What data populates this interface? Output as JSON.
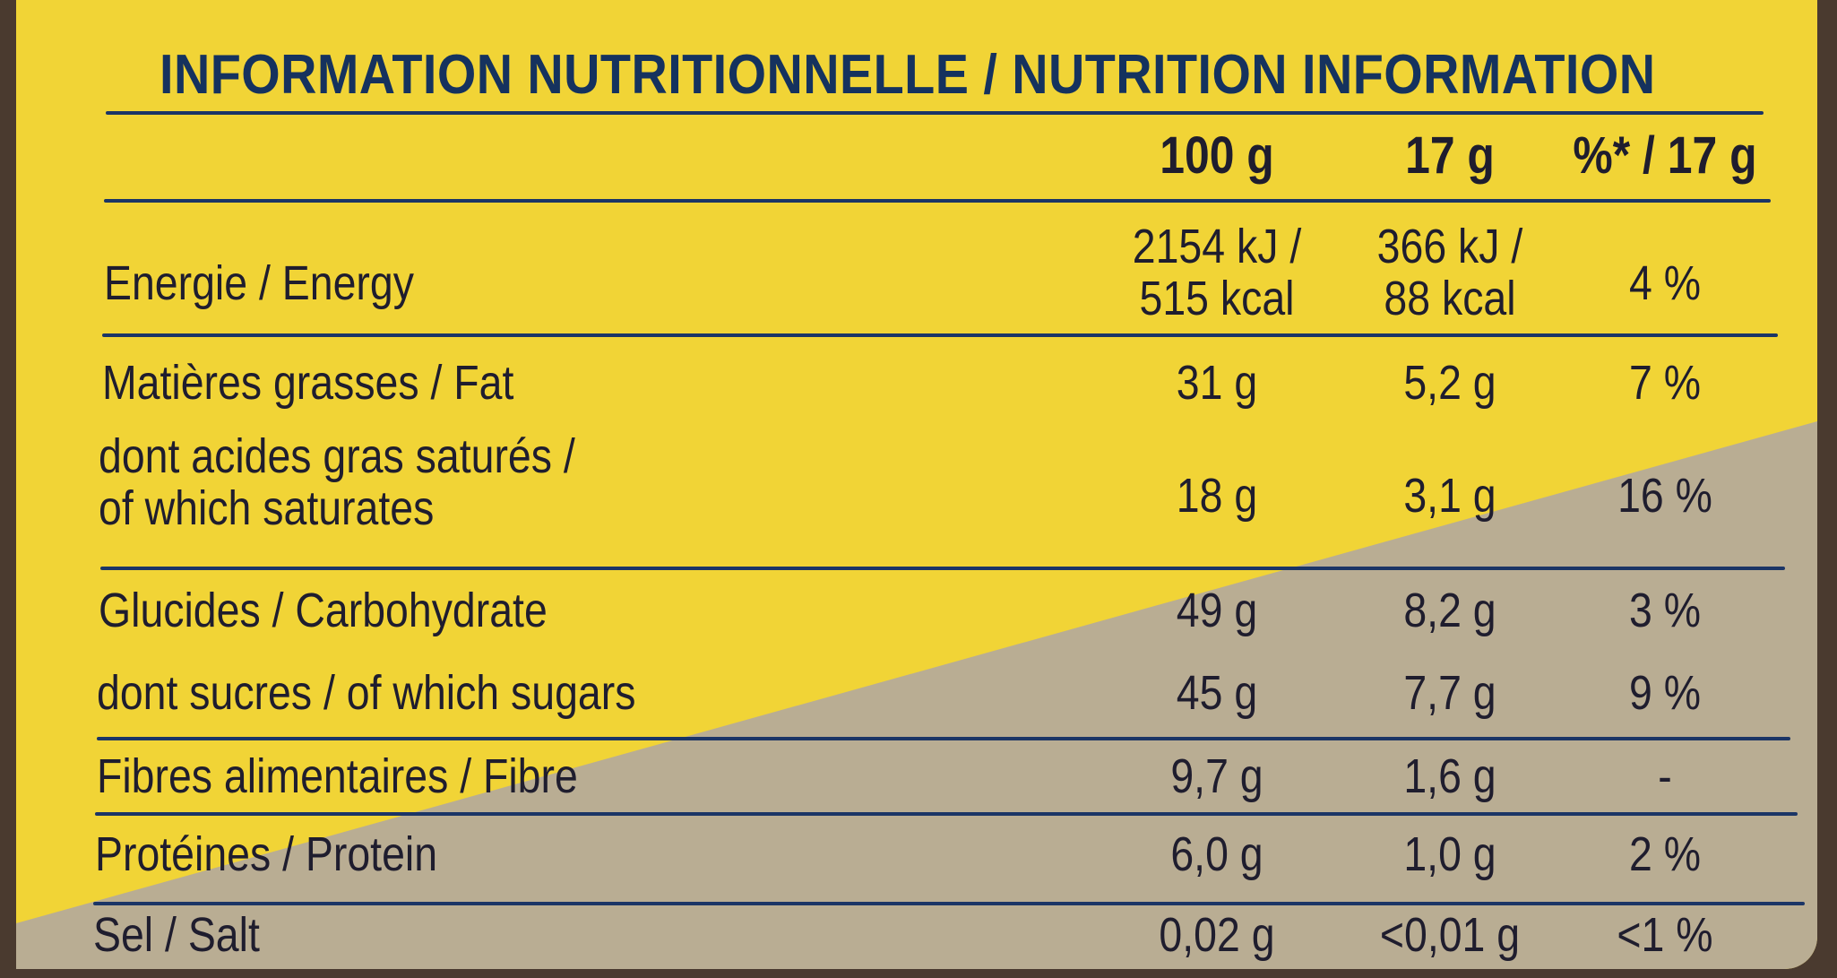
{
  "title": "INFORMATION NUTRITIONNELLE / NUTRITION INFORMATION",
  "columns": [
    "100 g",
    "17 g",
    "%* / 17 g"
  ],
  "rows": [
    {
      "label": "Energie / Energy",
      "v100": "2154 kJ /\n515 kcal",
      "v17": "366 kJ /\n88 kcal",
      "pct": "4 %"
    },
    {
      "label": "Matières grasses / Fat",
      "v100": "31 g",
      "v17": "5,2 g",
      "pct": "7 %"
    },
    {
      "label": "dont acides gras saturés /\nof which saturates",
      "v100": "18 g",
      "v17": "3,1 g",
      "pct": "16 %"
    },
    {
      "label": "Glucides / Carbohydrate",
      "v100": "49 g",
      "v17": "8,2 g",
      "pct": "3 %"
    },
    {
      "label": "dont sucres / of which sugars",
      "v100": "45 g",
      "v17": "7,7 g",
      "pct": "9 %"
    },
    {
      "label": "Fibres alimentaires / Fibre",
      "v100": "9,7 g",
      "v17": "1,6 g",
      "pct": "-"
    },
    {
      "label": "Protéines / Protein",
      "v100": "6,0 g",
      "v17": "1,0 g",
      "pct": "2 %"
    },
    {
      "label": "Sel / Salt",
      "v100": "0,02 g",
      "v17": "<0,01 g",
      "pct": "<1 %"
    }
  ],
  "colors": {
    "yellow": "#f1d436",
    "grey": "#b7ab90",
    "ink": "#1b3566",
    "frame": "#4a3a2f"
  }
}
